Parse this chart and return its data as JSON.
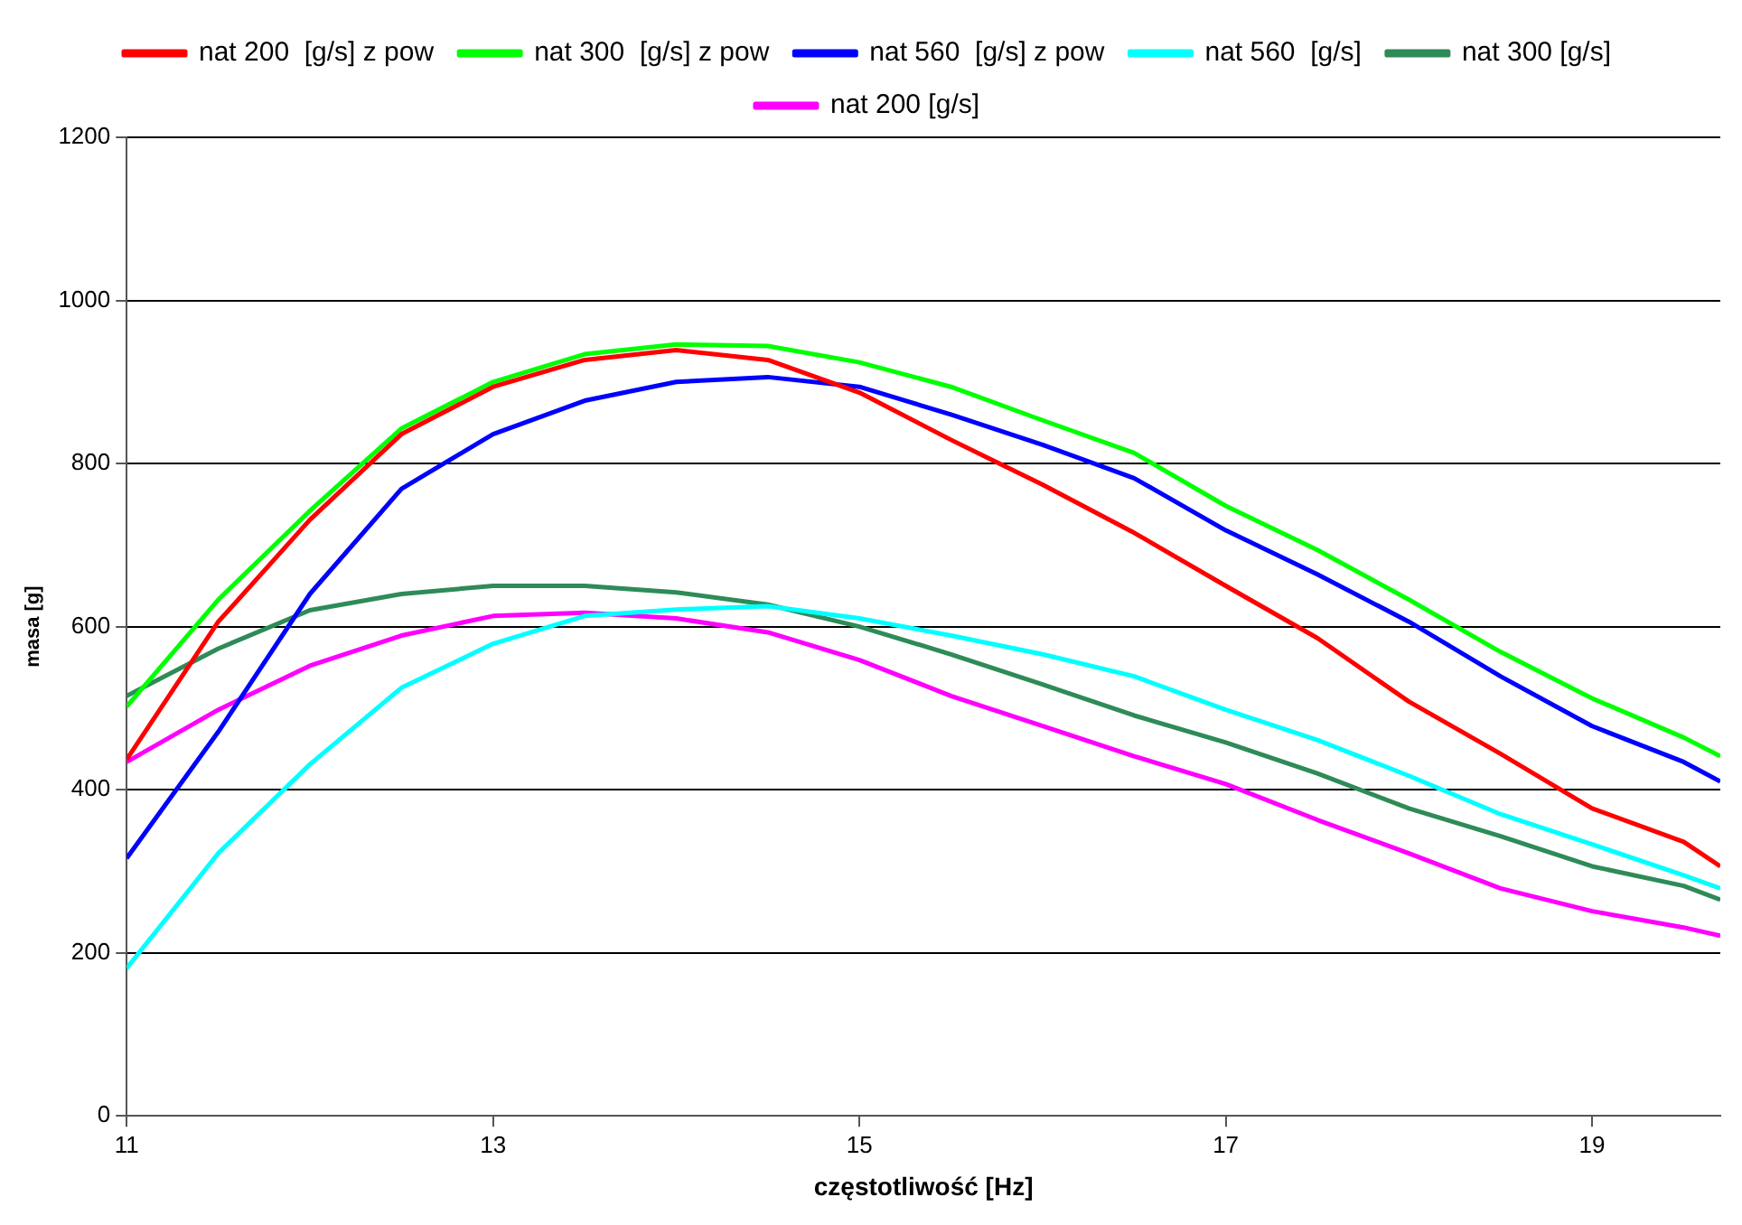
{
  "chart_data": {
    "type": "line",
    "xlabel": "częstotliwość [Hz]",
    "ylabel": "masa [g]",
    "x": [
      11,
      11.5,
      12,
      12.5,
      13,
      13.5,
      14,
      14.5,
      15,
      15.5,
      16,
      16.5,
      17,
      17.5,
      18,
      18.5,
      19,
      19.5,
      19.7
    ],
    "series": [
      {
        "name": "nat 200  [g/s] z pow",
        "color": "#ff0000",
        "values": [
          437,
          606,
          731,
          836,
          894,
          927,
          939,
          927,
          887,
          829,
          774,
          715,
          650,
          586,
          508,
          444,
          377,
          336,
          306
        ]
      },
      {
        "name": "nat 300  [g/s] z pow",
        "color": "#00ff00",
        "values": [
          502,
          633,
          742,
          843,
          900,
          934,
          946,
          944,
          924,
          894,
          853,
          813,
          748,
          694,
          633,
          569,
          512,
          464,
          441
        ]
      },
      {
        "name": "nat 560  [g/s] z pow",
        "color": "#0000ff",
        "values": [
          316,
          471,
          640,
          769,
          836,
          877,
          900,
          906,
          894,
          860,
          823,
          782,
          718,
          664,
          606,
          539,
          478,
          434,
          410
        ]
      },
      {
        "name": "nat 560  [g/s]",
        "color": "#00ffff",
        "values": [
          181,
          322,
          431,
          525,
          579,
          613,
          621,
          625,
          610,
          589,
          566,
          539,
          498,
          461,
          417,
          370,
          333,
          295,
          279
        ]
      },
      {
        "name": "nat 300 [g/s]",
        "color": "#2e8b57",
        "values": [
          515,
          573,
          620,
          640,
          650,
          650,
          642,
          627,
          600,
          566,
          529,
          491,
          458,
          420,
          377,
          343,
          306,
          282,
          265
        ]
      },
      {
        "name": "nat 200 [g/s]",
        "color": "#ff00ff",
        "values": [
          434,
          498,
          552,
          589,
          613,
          617,
          610,
          593,
          559,
          515,
          478,
          441,
          407,
          363,
          322,
          279,
          251,
          231,
          221
        ]
      }
    ],
    "xlim": [
      11,
      19.7
    ],
    "xticks": [
      11,
      13,
      15,
      17,
      19
    ],
    "ylim": [
      0,
      1200
    ],
    "yticks": [
      0,
      200,
      400,
      600,
      800,
      1000,
      1200
    ],
    "grid": "y",
    "legend": "top",
    "marker": "none",
    "line_style": "solid"
  }
}
